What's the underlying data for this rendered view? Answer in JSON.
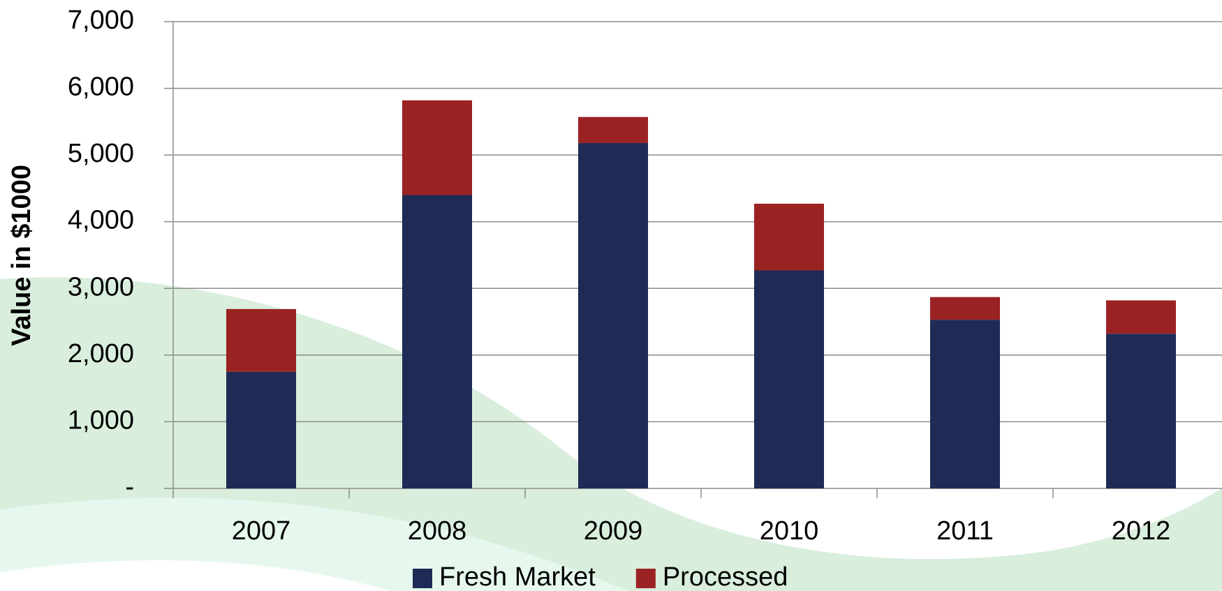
{
  "chart_data": {
    "type": "bar",
    "stacked": true,
    "y_label": "Value in $1000",
    "categories": [
      "2007",
      "2008",
      "2009",
      "2010",
      "2011",
      "2012"
    ],
    "series": [
      {
        "name": "Fresh Market",
        "color": "#1f2a55",
        "values": [
          1750,
          4400,
          5180,
          3270,
          2530,
          2320
        ]
      },
      {
        "name": "Processed",
        "color": "#9b2222",
        "values": [
          940,
          1420,
          390,
          1000,
          340,
          500
        ]
      }
    ],
    "ylim": [
      0,
      7000
    ],
    "yticks": [
      {
        "value": 0,
        "label": "-"
      },
      {
        "value": 1000,
        "label": "1,000"
      },
      {
        "value": 2000,
        "label": "2,000"
      },
      {
        "value": 3000,
        "label": "3,000"
      },
      {
        "value": 4000,
        "label": "4,000"
      },
      {
        "value": 5000,
        "label": "5,000"
      },
      {
        "value": 6000,
        "label": "6,000"
      },
      {
        "value": 7000,
        "label": "7,000"
      }
    ],
    "grid": true,
    "legend": "bottom"
  }
}
